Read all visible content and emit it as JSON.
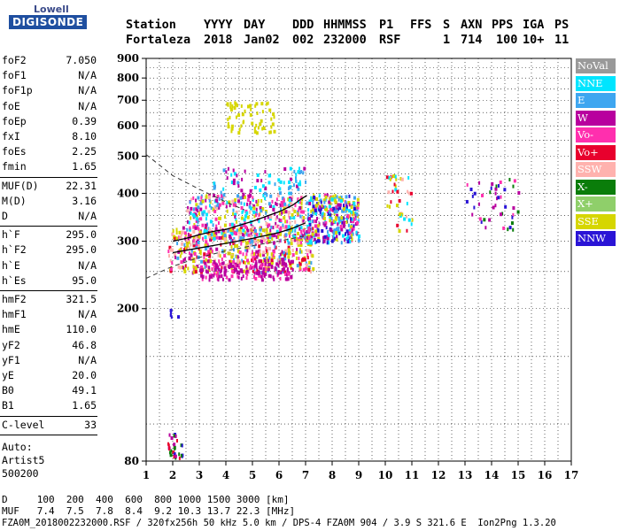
{
  "logo": {
    "company": "Lowell",
    "product": "DIGISONDE"
  },
  "header": {
    "labels": [
      "Station",
      "YYYY",
      "DAY",
      "DDD",
      "HHMMSS",
      "P1",
      "FFS",
      "S",
      "AXN",
      "PPS",
      "IGA",
      "PS"
    ],
    "values": [
      "Fortaleza",
      "2018",
      "Jan02",
      "002",
      "232000",
      "RSF",
      "",
      "1",
      "714",
      "100",
      "10+",
      "11"
    ]
  },
  "params_group1": [
    {
      "label": "foF2",
      "value": "7.050"
    },
    {
      "label": "foF1",
      "value": "N/A"
    },
    {
      "label": "foF1p",
      "value": "N/A"
    },
    {
      "label": "foE",
      "value": "N/A"
    },
    {
      "label": "foEp",
      "value": "0.39"
    },
    {
      "label": "fxI",
      "value": "8.10"
    },
    {
      "label": "foEs",
      "value": "2.25"
    },
    {
      "label": "fmin",
      "value": "1.65"
    }
  ],
  "params_group2": [
    {
      "label": "MUF(D)",
      "value": "22.31"
    },
    {
      "label": "M(D)",
      "value": "3.16"
    },
    {
      "label": "D",
      "value": "N/A"
    }
  ],
  "params_group3": [
    {
      "label": "h`F",
      "value": "295.0"
    },
    {
      "label": "h`F2",
      "value": "295.0"
    },
    {
      "label": "h`E",
      "value": "N/A"
    },
    {
      "label": "h`Es",
      "value": "95.0"
    }
  ],
  "params_group4": [
    {
      "label": "hmF2",
      "value": "321.5"
    },
    {
      "label": "hmF1",
      "value": "N/A"
    },
    {
      "label": "hmE",
      "value": "110.0"
    },
    {
      "label": "yF2",
      "value": "46.8"
    },
    {
      "label": "yF1",
      "value": "N/A"
    },
    {
      "label": "yE",
      "value": "20.0"
    },
    {
      "label": "B0",
      "value": "49.1"
    },
    {
      "label": "B1",
      "value": "1.65"
    }
  ],
  "c_level": {
    "label": "C-level",
    "value": "33"
  },
  "autoscaling": {
    "line1": "Auto:",
    "line2": "Artist5",
    "line3": "500200"
  },
  "legend": [
    {
      "label": "NoVal",
      "bg": "#999999",
      "fg": "#ffffff"
    },
    {
      "label": "NNE",
      "bg": "#00e5ff",
      "fg": "#ffffff"
    },
    {
      "label": "E",
      "bg": "#3ea6f0",
      "fg": "#ffffff"
    },
    {
      "label": "W",
      "bg": "#b8009e",
      "fg": "#ffffff"
    },
    {
      "label": "Vo-",
      "bg": "#ff2fae",
      "fg": "#ffffff"
    },
    {
      "label": "Vo+",
      "bg": "#e8002d",
      "fg": "#ffffff"
    },
    {
      "label": "SSW",
      "bg": "#ffb2ae",
      "fg": "#ffffff"
    },
    {
      "label": "X-",
      "bg": "#0a7d0a",
      "fg": "#ffffff"
    },
    {
      "label": "X+",
      "bg": "#8fcf6a",
      "fg": "#ffffff"
    },
    {
      "label": "SSE",
      "bg": "#d6d600",
      "fg": "#ffffff"
    },
    {
      "label": "NNW",
      "bg": "#2a14d6",
      "fg": "#ffffff"
    }
  ],
  "footer": {
    "d_row": "D     100  200  400  600  800 1000 1500 3000 [km]",
    "muf_row": "MUF   7.4  7.5  7.8  8.4  9.2 10.3 13.7 22.3 [MHz]",
    "info_row": "FZA0M_2018002232000.RSF / 320fx256h 50 kHz 5.0 km / DPS-4 FZA0M 904 / 3.9 S 321.6 E  Ion2Png 1.3.20"
  },
  "chart_data": {
    "type": "scatter",
    "title": "",
    "xlabel": "",
    "ylabel": "",
    "xlim": [
      1,
      17
    ],
    "ylim": [
      80,
      900
    ],
    "x_ticks": [
      1,
      2,
      3,
      4,
      5,
      6,
      7,
      8,
      9,
      10,
      11,
      12,
      13,
      14,
      15,
      16,
      17
    ],
    "y_ticks": [
      80,
      200,
      300,
      400,
      500,
      600,
      700,
      800,
      900
    ],
    "y_scale": "log",
    "grid": true,
    "legend_position": "right",
    "series": [
      {
        "name": "trace",
        "type": "line",
        "style": "solid",
        "color": "#000000",
        "points": [
          [
            2.0,
            300
          ],
          [
            2.5,
            305
          ],
          [
            3.0,
            312
          ],
          [
            3.5,
            318
          ],
          [
            4.0,
            322
          ],
          [
            4.5,
            330
          ],
          [
            5.0,
            338
          ],
          [
            5.5,
            348
          ],
          [
            6.0,
            358
          ],
          [
            6.5,
            372
          ],
          [
            6.8,
            385
          ],
          [
            7.05,
            395
          ]
        ]
      },
      {
        "name": "profile",
        "type": "line",
        "style": "solid",
        "color": "#000000",
        "points": [
          [
            2.0,
            280
          ],
          [
            3.0,
            288
          ],
          [
            4.0,
            296
          ],
          [
            5.0,
            305
          ],
          [
            6.0,
            316
          ],
          [
            6.5,
            324
          ],
          [
            7.0,
            335
          ]
        ]
      },
      {
        "name": "profile-dashed",
        "type": "line",
        "style": "dashed",
        "color": "#333333",
        "points": [
          [
            1.0,
            505
          ],
          [
            2.0,
            445
          ],
          [
            3.0,
            410
          ],
          [
            4.0,
            380
          ],
          [
            4.7,
            362
          ]
        ]
      },
      {
        "name": "profile-dashed-low",
        "type": "line",
        "style": "dashed",
        "color": "#333333",
        "points": [
          [
            1.0,
            240
          ],
          [
            2.0,
            258
          ],
          [
            3.0,
            272
          ],
          [
            4.0,
            283
          ],
          [
            5.0,
            292
          ],
          [
            6.0,
            300
          ],
          [
            7.0,
            310
          ]
        ]
      }
    ],
    "clusters": [
      {
        "x": [
          1.8,
          7.3
        ],
        "y": [
          250,
          330
        ],
        "n": 520,
        "colors": [
          "#d6d600",
          "#d6d600",
          "#ffb2ae",
          "#ff2fae",
          "#3ea6f0",
          "#b8009e",
          "#e8002d"
        ]
      },
      {
        "x": [
          2.5,
          7.0
        ],
        "y": [
          300,
          400
        ],
        "n": 400,
        "colors": [
          "#3ea6f0",
          "#00e5ff",
          "#d6d600",
          "#ff2fae",
          "#ffb2ae",
          "#b8009e"
        ]
      },
      {
        "x": [
          3.0,
          6.5
        ],
        "y": [
          240,
          270
        ],
        "n": 160,
        "colors": [
          "#b8009e",
          "#ff2fae",
          "#b8009e"
        ]
      },
      {
        "x": [
          7.0,
          9.0
        ],
        "y": [
          300,
          400
        ],
        "n": 320,
        "colors": [
          "#d6d600",
          "#3ea6f0",
          "#2a14d6",
          "#b8009e",
          "#ff2fae",
          "#00e5ff"
        ]
      },
      {
        "x": [
          3.5,
          7.0
        ],
        "y": [
          400,
          470
        ],
        "n": 70,
        "colors": [
          "#3ea6f0",
          "#00e5ff",
          "#b8009e"
        ]
      },
      {
        "x": [
          4.0,
          5.8
        ],
        "y": [
          580,
          700
        ],
        "n": 60,
        "colors": [
          "#d6d600"
        ]
      },
      {
        "x": [
          10.0,
          11.0
        ],
        "y": [
          320,
          450
        ],
        "n": 40,
        "colors": [
          "#00e5ff",
          "#ffb2ae",
          "#d6d600",
          "#e8002d"
        ]
      },
      {
        "x": [
          13.0,
          15.0
        ],
        "y": [
          320,
          440
        ],
        "n": 45,
        "colors": [
          "#2a14d6",
          "#b8009e",
          "#ff2fae",
          "#0a7d0a"
        ]
      },
      {
        "x": [
          1.8,
          2.5
        ],
        "y": [
          82,
          95
        ],
        "n": 30,
        "colors": [
          "#e8002d",
          "#0a7d0a",
          "#b8009e",
          "#2a14d6"
        ]
      },
      {
        "x": [
          1.8,
          2.2
        ],
        "y": [
          190,
          200
        ],
        "n": 6,
        "colors": [
          "#2a14d6"
        ]
      }
    ]
  }
}
